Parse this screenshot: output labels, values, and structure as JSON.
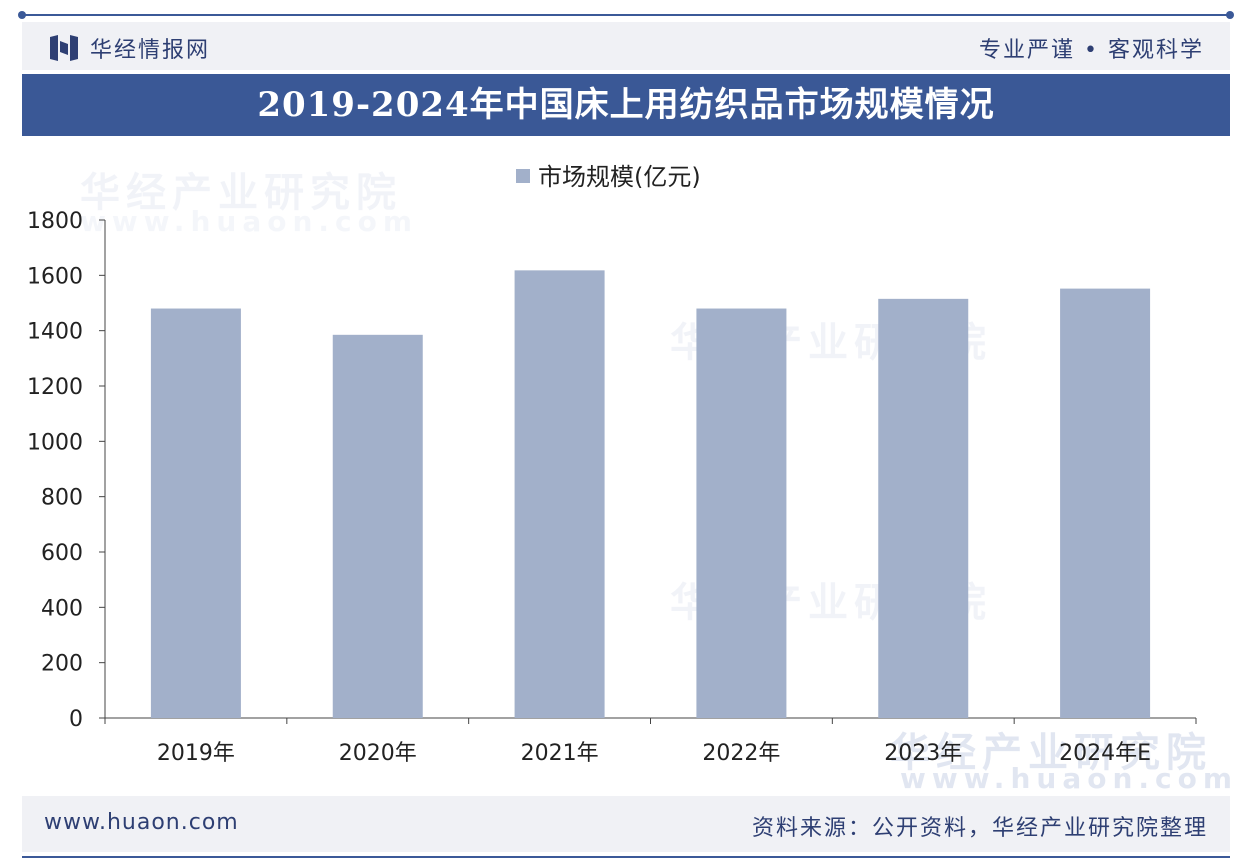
{
  "brand": {
    "name": "华经情报网",
    "logo_icon": "huajing-logo-icon"
  },
  "slogan": "专业严谨 • 客观科学",
  "watermark": {
    "cn": "华经产业研究院",
    "url": "www.huaon.com"
  },
  "footer": {
    "url": "www.huaon.com",
    "source": "资料来源：公开资料，华经产业研究院整理"
  },
  "colors": {
    "accent": "#3a5896",
    "bar": "#a2b0ca",
    "text": "#2e3f73"
  },
  "chart_data": {
    "type": "bar",
    "title": "2019-2024年中国床上用纺织品市场规模情况",
    "categories": [
      "2019年",
      "2020年",
      "2021年",
      "2022年",
      "2023年",
      "2024年E"
    ],
    "series": [
      {
        "name": "市场规模(亿元)",
        "values": [
          1480,
          1385,
          1618,
          1480,
          1515,
          1552
        ]
      }
    ],
    "xlabel": "",
    "ylabel": "",
    "ylim": [
      0,
      1800
    ],
    "yticks": [
      0,
      200,
      400,
      600,
      800,
      1000,
      1200,
      1400,
      1600,
      1800
    ],
    "legend": "top-center",
    "grid": false
  }
}
